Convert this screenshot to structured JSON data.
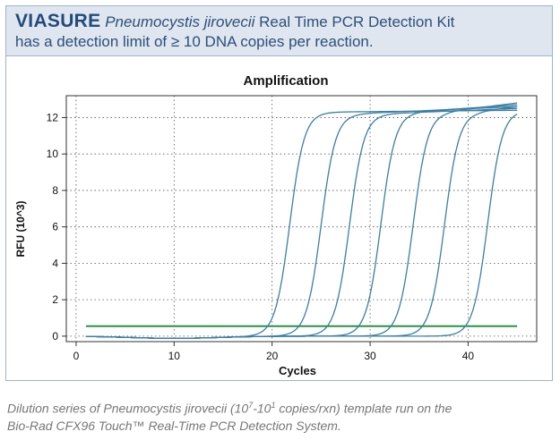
{
  "header": {
    "brand": "VIASURE",
    "species": "Pneumocystis jirovecii",
    "kit_name": "Real Time PCR Detection Kit",
    "line2": "has a detection limit of ≥ 10 DNA copies per reaction."
  },
  "caption": {
    "part1": "Dilution series of Pneumocystis jirovecii (10",
    "exp1": "7",
    "part2": "-10",
    "exp2": "1",
    "part3": " copies/rxn) template run on the",
    "line2": "Bio-Rad CFX96 Touch™ Real-Time PCR Detection System."
  },
  "colors": {
    "curve": "#3a7fa6",
    "threshold": "#1f8a3a",
    "header_bg": "#dfe6f0",
    "header_text": "#2c4f7a",
    "border": "#9eb4cf"
  },
  "chart_data": {
    "type": "line",
    "title": "Amplification",
    "xlabel": "Cycles",
    "ylabel": "RFU (10^3)",
    "xlim": [
      -1,
      47
    ],
    "ylim": [
      -0.3,
      13.2
    ],
    "xticks": [
      0,
      10,
      20,
      30,
      40
    ],
    "yticks": [
      0,
      2,
      4,
      6,
      8,
      10,
      12
    ],
    "grid": true,
    "threshold": 0.55,
    "cycle_range": [
      1,
      45
    ],
    "series": [
      {
        "ct": 19.8,
        "midpoint": 21.8,
        "plateau": 12.3,
        "end": 12.4
      },
      {
        "ct": 23.0,
        "midpoint": 25.0,
        "plateau": 12.2,
        "end": 12.6
      },
      {
        "ct": 25.9,
        "midpoint": 27.9,
        "plateau": 12.2,
        "end": 12.5
      },
      {
        "ct": 29.0,
        "midpoint": 31.1,
        "plateau": 12.3,
        "end": 12.7
      },
      {
        "ct": 32.4,
        "midpoint": 34.4,
        "plateau": 12.3,
        "end": 12.8
      },
      {
        "ct": 35.6,
        "midpoint": 37.6,
        "plateau": 12.3,
        "end": 12.6
      },
      {
        "ct": 40.0,
        "midpoint": 42.0,
        "plateau": 12.4,
        "end": 12.5
      }
    ]
  }
}
